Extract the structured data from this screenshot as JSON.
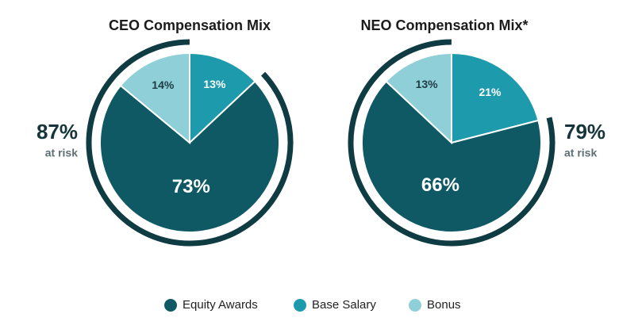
{
  "chart_data": [
    {
      "type": "pie",
      "title": "CEO Compensation Mix",
      "categories": [
        "Equity Awards",
        "Base Salary",
        "Bonus"
      ],
      "values": [
        73,
        13,
        14
      ],
      "value_labels": [
        "73%",
        "13%",
        "14%"
      ],
      "colors": [
        "#0f5964",
        "#1e9aad",
        "#8ecfd8"
      ],
      "at_risk": {
        "value": 87,
        "label": "87%",
        "text": "at risk"
      }
    },
    {
      "type": "pie",
      "title": "NEO Compensation Mix*",
      "categories": [
        "Equity Awards",
        "Base Salary",
        "Bonus"
      ],
      "values": [
        66,
        21,
        13
      ],
      "value_labels": [
        "66%",
        "21%",
        "13%"
      ],
      "colors": [
        "#0f5964",
        "#1e9aad",
        "#8ecfd8"
      ],
      "at_risk": {
        "value": 79,
        "label": "79%",
        "text": "at risk"
      }
    }
  ]
}
